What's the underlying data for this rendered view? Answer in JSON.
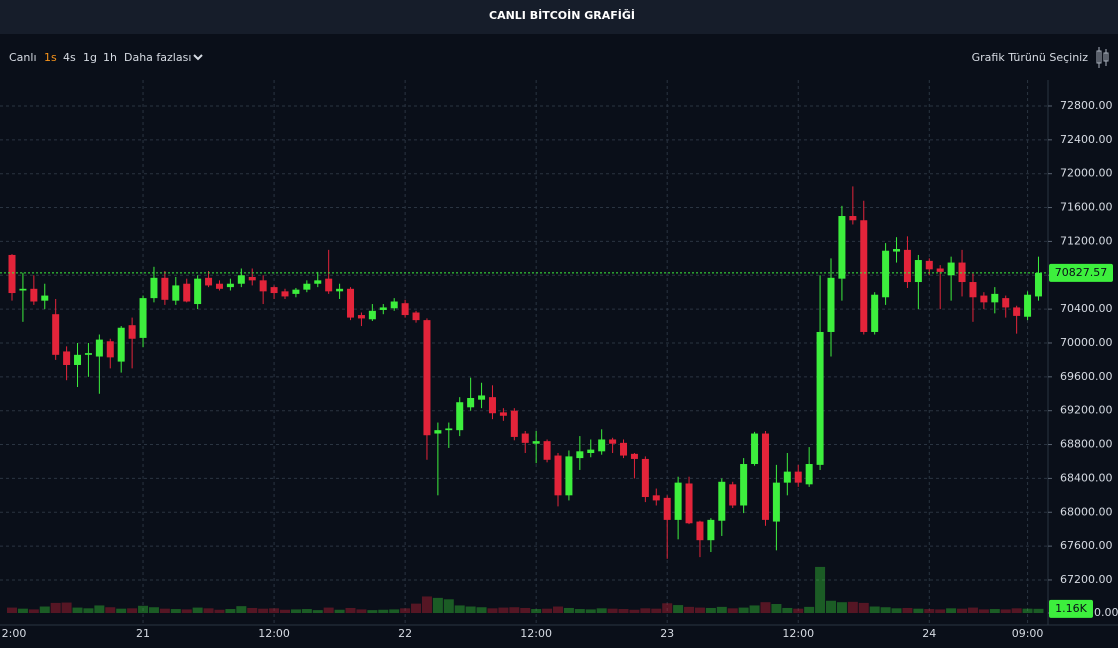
{
  "chart_data": {
    "type": "candlestick",
    "title": "CANLI BİTCOİN GRAFİĞİ",
    "categories": [
      "2:00",
      null,
      null,
      null,
      null,
      null,
      null,
      null,
      null,
      null,
      null,
      null,
      "21",
      null,
      null,
      null,
      null,
      null,
      null,
      null,
      null,
      null,
      null,
      null,
      "12:00",
      null,
      null,
      null,
      null,
      null,
      null,
      null,
      null,
      null,
      null,
      null,
      "22",
      null,
      null,
      null,
      null,
      null,
      null,
      null,
      null,
      null,
      null,
      null,
      "12:00",
      null,
      null,
      null,
      null,
      null,
      null,
      null,
      null,
      null,
      null,
      null,
      "23",
      null,
      null,
      null,
      null,
      null,
      null,
      null,
      null,
      null,
      null,
      null,
      "12:00",
      null,
      null,
      null,
      null,
      null,
      null,
      null,
      null,
      null,
      null,
      null,
      "24",
      null,
      null,
      null,
      null,
      null,
      null,
      null,
      null,
      "09:00",
      null
    ],
    "open": [
      71040,
      70620,
      70640,
      70500,
      70340,
      69900,
      69740,
      69860,
      69840,
      70020,
      69780,
      70210,
      70060,
      70530,
      70770,
      70500,
      70700,
      70460,
      70770,
      70700,
      70660,
      70700,
      70780,
      70740,
      70660,
      70610,
      70580,
      70630,
      70700,
      70760,
      70610,
      70640,
      70330,
      70280,
      70390,
      70410,
      70470,
      70360,
      70270,
      68930,
      68970,
      68970,
      69240,
      69330,
      69360,
      69180,
      69200,
      68930,
      68810,
      68840,
      68670,
      68200,
      68640,
      68700,
      68720,
      68860,
      68820,
      68690,
      68630,
      68200,
      68170,
      67910,
      68340,
      67890,
      67670,
      67900,
      68330,
      68080,
      68570,
      68930,
      67890,
      68350,
      68480,
      68330,
      68560,
      70130,
      70760,
      71500,
      71450,
      70130,
      70540,
      71080,
      71100,
      70720,
      70970,
      70880,
      70800,
      70950,
      70720,
      70560,
      70480,
      70530,
      70420,
      70310,
      70550
    ],
    "high": [
      71050,
      70830,
      70800,
      70700,
      70520,
      69960,
      70000,
      70000,
      70100,
      70050,
      70200,
      70300,
      70560,
      70900,
      70850,
      70780,
      70760,
      70800,
      70850,
      70740,
      70760,
      70880,
      70880,
      70800,
      70680,
      70640,
      70650,
      70740,
      70840,
      71100,
      70700,
      70660,
      70360,
      70460,
      70460,
      70530,
      70510,
      70380,
      70290,
      69060,
      69060,
      69360,
      69590,
      69530,
      69500,
      69230,
      69230,
      68960,
      68960,
      68860,
      68700,
      68730,
      68900,
      68860,
      68980,
      68880,
      68860,
      68700,
      68660,
      68280,
      68200,
      68420,
      68420,
      67900,
      67930,
      68400,
      68360,
      68640,
      68950,
      68960,
      68560,
      68700,
      68560,
      68770,
      70800,
      71000,
      71620,
      71850,
      71680,
      70600,
      71180,
      71250,
      71260,
      71040,
      71000,
      70920,
      71020,
      71100,
      70820,
      70600,
      70660,
      70560,
      70440,
      70610,
      71020
    ],
    "low": [
      70500,
      70250,
      70450,
      70400,
      69800,
      69560,
      69480,
      69600,
      69400,
      69700,
      69650,
      69700,
      69950,
      70480,
      70450,
      70450,
      70480,
      70400,
      70660,
      70620,
      70620,
      70660,
      70680,
      70460,
      70520,
      70520,
      70540,
      70600,
      70660,
      70580,
      70520,
      70270,
      70200,
      70260,
      70340,
      70380,
      70300,
      70240,
      68620,
      68200,
      68760,
      68900,
      69200,
      69230,
      69100,
      69080,
      68850,
      68700,
      68580,
      68590,
      68070,
      68140,
      68500,
      68650,
      68680,
      68700,
      68640,
      68400,
      68120,
      68080,
      67450,
      67680,
      67860,
      67470,
      67530,
      67720,
      68050,
      67990,
      68550,
      67840,
      67550,
      68200,
      68300,
      68300,
      68500,
      69840,
      70500,
      71400,
      70100,
      70100,
      70450,
      70950,
      70650,
      70400,
      70800,
      70400,
      70500,
      70550,
      70250,
      70400,
      70350,
      70300,
      70110,
      70270,
      70500
    ],
    "close": [
      70590,
      70640,
      70490,
      70560,
      69860,
      69740,
      69860,
      69880,
      70040,
      69830,
      70180,
      70050,
      70530,
      70770,
      70510,
      70680,
      70490,
      70760,
      70680,
      70640,
      70700,
      70800,
      70740,
      70610,
      70590,
      70550,
      70630,
      70700,
      70740,
      70610,
      70640,
      70300,
      70290,
      70380,
      70420,
      70490,
      70330,
      70270,
      68910,
      68970,
      68990,
      69300,
      69350,
      69380,
      69170,
      69140,
      68890,
      68820,
      68840,
      68620,
      68200,
      68660,
      68720,
      68740,
      68860,
      68810,
      68670,
      68630,
      68180,
      68140,
      67910,
      68350,
      67870,
      67670,
      67910,
      68360,
      68080,
      68570,
      68930,
      67910,
      68350,
      68480,
      68350,
      68570,
      70130,
      70770,
      71500,
      71450,
      70130,
      70570,
      71090,
      71110,
      70720,
      70980,
      70870,
      70840,
      70950,
      70720,
      70540,
      70480,
      70580,
      70420,
      70320,
      70570,
      70827.57
    ],
    "volume": [
      1500,
      1200,
      1000,
      1800,
      2800,
      2900,
      1500,
      1300,
      2100,
      1600,
      1200,
      1300,
      2000,
      1600,
      1200,
      1100,
      1000,
      1500,
      1300,
      900,
      1100,
      1900,
      1400,
      1200,
      1300,
      900,
      1000,
      1100,
      800,
      1500,
      900,
      1400,
      1000,
      800,
      900,
      1000,
      1300,
      2600,
      4600,
      4200,
      3800,
      2100,
      1800,
      1600,
      1300,
      1500,
      1600,
      1400,
      1100,
      1200,
      1800,
      1400,
      1100,
      1000,
      1300,
      1200,
      1100,
      900,
      1300,
      1200,
      2700,
      2200,
      1700,
      1500,
      1400,
      1700,
      1300,
      1500,
      2100,
      3000,
      2500,
      1400,
      1200,
      1700,
      12800,
      3400,
      3000,
      3100,
      2800,
      1800,
      1600,
      1300,
      1400,
      1200,
      1100,
      1000,
      1300,
      1200,
      1500,
      1000,
      1100,
      1000,
      1300,
      1200,
      1160
    ],
    "volume_last_label": "1.16K",
    "up_color": "#3def3d",
    "down_color": "#e3243a",
    "ylim": [
      66668,
      73107
    ],
    "yticks": [
      {
        "value": 67200,
        "label": "67200.00"
      },
      {
        "value": 67600,
        "label": "67600.00"
      },
      {
        "value": 68000,
        "label": "68000.00"
      },
      {
        "value": 68400,
        "label": "68400.00"
      },
      {
        "value": 68800,
        "label": "68800.00"
      },
      {
        "value": 69200,
        "label": "69200.00"
      },
      {
        "value": 69600,
        "label": "69600.00"
      },
      {
        "value": 70000,
        "label": "70000.00"
      },
      {
        "value": 70400,
        "label": "70400.00"
      },
      {
        "value": 70800,
        "label": "70800.00"
      },
      {
        "value": 71200,
        "label": "71200.00"
      },
      {
        "value": 71600,
        "label": "71600.00"
      },
      {
        "value": 72000,
        "label": "72000.00"
      },
      {
        "value": 72400,
        "label": "72400.00"
      },
      {
        "value": 72800,
        "label": "72800.00"
      }
    ],
    "volume_ylim": [
      0,
      150000
    ],
    "volume_yticks": [
      {
        "value": 0,
        "label": "0.00"
      }
    ],
    "grid": true
  },
  "toolbar": {
    "items": [
      "Canlı",
      "1s",
      "4s",
      "1g",
      "1h",
      "Daha fazlası"
    ],
    "active": 1,
    "active_color": "#f7931a",
    "chart_type_button": "Grafik Türünü Seçiniz"
  }
}
